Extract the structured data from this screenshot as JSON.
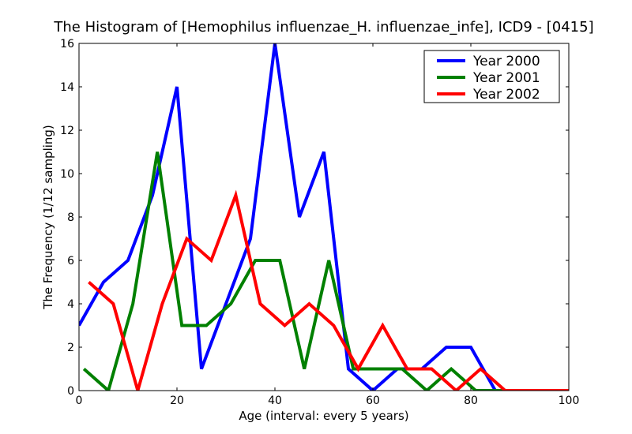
{
  "chart_data": {
    "type": "line",
    "title": "The Histogram of [Hemophilus influenzae_H. influenzae_infe], ICD9 - [0415]",
    "xlabel": "Age (interval: every 5 years)",
    "ylabel": "The Frequency (1/12 sampling)",
    "xlim": [
      0,
      100
    ],
    "ylim": [
      0,
      16
    ],
    "xticks": [
      0,
      20,
      40,
      60,
      80,
      100
    ],
    "yticks": [
      0,
      2,
      4,
      6,
      8,
      10,
      12,
      14,
      16
    ],
    "grid": false,
    "legend_position": "top-right",
    "series": [
      {
        "name": "Year 2000",
        "color": "#0000ff",
        "x": [
          0,
          5,
          10,
          15,
          20,
          25,
          30,
          35,
          40,
          45,
          50,
          55,
          60,
          65,
          70,
          75,
          80,
          85,
          90,
          95,
          100
        ],
        "y": [
          3,
          5,
          6,
          9,
          14,
          1,
          4,
          7,
          16,
          8,
          11,
          1,
          0,
          1,
          1,
          2,
          2,
          0,
          0,
          0,
          0
        ]
      },
      {
        "name": "Year 2001",
        "color": "#008000",
        "x": [
          1,
          6,
          11,
          16,
          21,
          26,
          31,
          36,
          41,
          46,
          51,
          56,
          61,
          66,
          71,
          76,
          81,
          86,
          91,
          96
        ],
        "y": [
          1,
          0,
          4,
          11,
          3,
          3,
          4,
          6,
          6,
          1,
          6,
          1,
          1,
          1,
          0,
          1,
          0,
          0,
          0,
          0
        ]
      },
      {
        "name": "Year 2002",
        "color": "#ff0000",
        "x": [
          2,
          7,
          12,
          17,
          22,
          27,
          32,
          37,
          42,
          47,
          52,
          57,
          62,
          67,
          72,
          77,
          82,
          87,
          92,
          97,
          100
        ],
        "y": [
          5,
          4,
          0,
          4,
          7,
          6,
          9,
          4,
          3,
          4,
          3,
          1,
          3,
          1,
          1,
          0,
          1,
          0,
          0,
          0,
          0
        ]
      }
    ]
  }
}
